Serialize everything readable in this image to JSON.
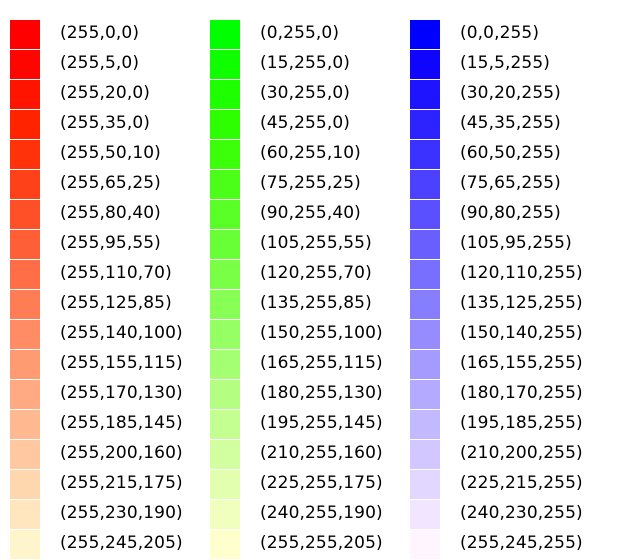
{
  "columns": [
    {
      "id": "red",
      "swatches": [
        {
          "label": "(255,0,0)",
          "color": "#ff0000"
        },
        {
          "label": "(255,5,0)",
          "color": "#ff0500"
        },
        {
          "label": "(255,20,0)",
          "color": "#ff1400"
        },
        {
          "label": "(255,35,0)",
          "color": "#ff2300"
        },
        {
          "label": "(255,50,10)",
          "color": "#ff320a"
        },
        {
          "label": "(255,65,25)",
          "color": "#ff4119"
        },
        {
          "label": "(255,80,40)",
          "color": "#ff5028"
        },
        {
          "label": "(255,95,55)",
          "color": "#ff5f37"
        },
        {
          "label": "(255,110,70)",
          "color": "#ff6e46"
        },
        {
          "label": "(255,125,85)",
          "color": "#ff7d55"
        },
        {
          "label": "(255,140,100)",
          "color": "#ff8c64"
        },
        {
          "label": "(255,155,115)",
          "color": "#ff9b73"
        },
        {
          "label": "(255,170,130)",
          "color": "#ffaa82"
        },
        {
          "label": "(255,185,145)",
          "color": "#ffb991"
        },
        {
          "label": "(255,200,160)",
          "color": "#ffc8a0"
        },
        {
          "label": "(255,215,175)",
          "color": "#ffd7af"
        },
        {
          "label": "(255,230,190)",
          "color": "#ffe6be"
        },
        {
          "label": "(255,245,205)",
          "color": "#fff5cd"
        }
      ]
    },
    {
      "id": "green",
      "swatches": [
        {
          "label": "(0,255,0)",
          "color": "#00ff00"
        },
        {
          "label": "(15,255,0)",
          "color": "#0fff00"
        },
        {
          "label": "(30,255,0)",
          "color": "#1eff00"
        },
        {
          "label": "(45,255,0)",
          "color": "#2dff00"
        },
        {
          "label": "(60,255,10)",
          "color": "#3cff0a"
        },
        {
          "label": "(75,255,25)",
          "color": "#4bff19"
        },
        {
          "label": "(90,255,40)",
          "color": "#5aff28"
        },
        {
          "label": "(105,255,55)",
          "color": "#69ff37"
        },
        {
          "label": "(120,255,70)",
          "color": "#78ff46"
        },
        {
          "label": "(135,255,85)",
          "color": "#87ff55"
        },
        {
          "label": "(150,255,100)",
          "color": "#96ff64"
        },
        {
          "label": "(165,255,115)",
          "color": "#a5ff73"
        },
        {
          "label": "(180,255,130)",
          "color": "#b4ff82"
        },
        {
          "label": "(195,255,145)",
          "color": "#c3ff91"
        },
        {
          "label": "(210,255,160)",
          "color": "#d2ffa0"
        },
        {
          "label": "(225,255,175)",
          "color": "#e1ffaf"
        },
        {
          "label": "(240,255,190)",
          "color": "#f0ffbe"
        },
        {
          "label": "(255,255,205)",
          "color": "#ffffcd"
        }
      ]
    },
    {
      "id": "blue",
      "swatches": [
        {
          "label": "(0,0,255)",
          "color": "#0000ff"
        },
        {
          "label": "(15,5,255)",
          "color": "#0f05ff"
        },
        {
          "label": "(30,20,255)",
          "color": "#1e14ff"
        },
        {
          "label": "(45,35,255)",
          "color": "#2d23ff"
        },
        {
          "label": "(60,50,255)",
          "color": "#3c32ff"
        },
        {
          "label": "(75,65,255)",
          "color": "#4b41ff"
        },
        {
          "label": "(90,80,255)",
          "color": "#5a50ff"
        },
        {
          "label": "(105,95,255)",
          "color": "#695fff"
        },
        {
          "label": "(120,110,255)",
          "color": "#786eff"
        },
        {
          "label": "(135,125,255)",
          "color": "#877dff"
        },
        {
          "label": "(150,140,255)",
          "color": "#968cff"
        },
        {
          "label": "(165,155,255)",
          "color": "#a59bff"
        },
        {
          "label": "(180,170,255)",
          "color": "#b4aaff"
        },
        {
          "label": "(195,185,255)",
          "color": "#c3b9ff"
        },
        {
          "label": "(210,200,255)",
          "color": "#d2c8ff"
        },
        {
          "label": "(225,215,255)",
          "color": "#e1d7ff"
        },
        {
          "label": "(240,230,255)",
          "color": "#f0e6ff"
        },
        {
          "label": "(255,245,255)",
          "color": "#fff5ff"
        }
      ]
    }
  ]
}
